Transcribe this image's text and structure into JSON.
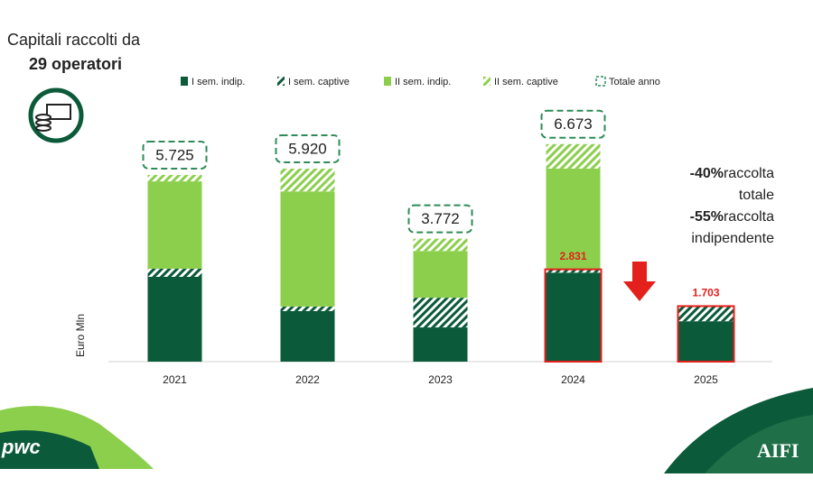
{
  "chart_data": {
    "type": "stacked_bar",
    "title": "Capitali raccolti da",
    "subtitle": "29 operatori",
    "y_label": "Euro Mln",
    "categories": [
      "2021",
      "2022",
      "2023",
      "2024",
      "2025"
    ],
    "series": [
      {
        "name": "I sem. indip.",
        "color": "#0b5a3a",
        "pattern": "solid",
        "values": [
          2600,
          1550,
          1050,
          2730,
          1240
        ]
      },
      {
        "name": "I sem. captive",
        "color": "#0b5a3a",
        "pattern": "hatch",
        "values": [
          250,
          140,
          910,
          101,
          463
        ]
      },
      {
        "name": "II sem. indip.",
        "color": "#8ccf4d",
        "pattern": "solid",
        "values": [
          2680,
          3530,
          1435,
          3090,
          null
        ]
      },
      {
        "name": "II sem. captive",
        "color": "#8ccf4d",
        "pattern": "hatch",
        "values": [
          195,
          700,
          377,
          752,
          null
        ]
      }
    ],
    "totals": {
      "name": "Totale anno",
      "color": "#2e8b57",
      "values": [
        5725,
        5920,
        3772,
        6673,
        null
      ],
      "value_labels": [
        "5.725",
        "5.920",
        "3.772",
        "6.673",
        null
      ]
    },
    "highlights": {
      "color": "#e3201b",
      "values": [
        null,
        null,
        null,
        2831,
        1703
      ],
      "value_labels": [
        null,
        null,
        null,
        "2.831",
        "1.703"
      ]
    },
    "ylim": [
      0,
      7800
    ],
    "annotations": [
      {
        "strong": "-40%",
        "rest": "raccolta"
      },
      {
        "rest": "totale"
      },
      {
        "strong": "-55%",
        "rest": "raccolta"
      },
      {
        "rest": "indipendente"
      }
    ],
    "logos": [
      "pwc",
      "AIFI"
    ]
  }
}
